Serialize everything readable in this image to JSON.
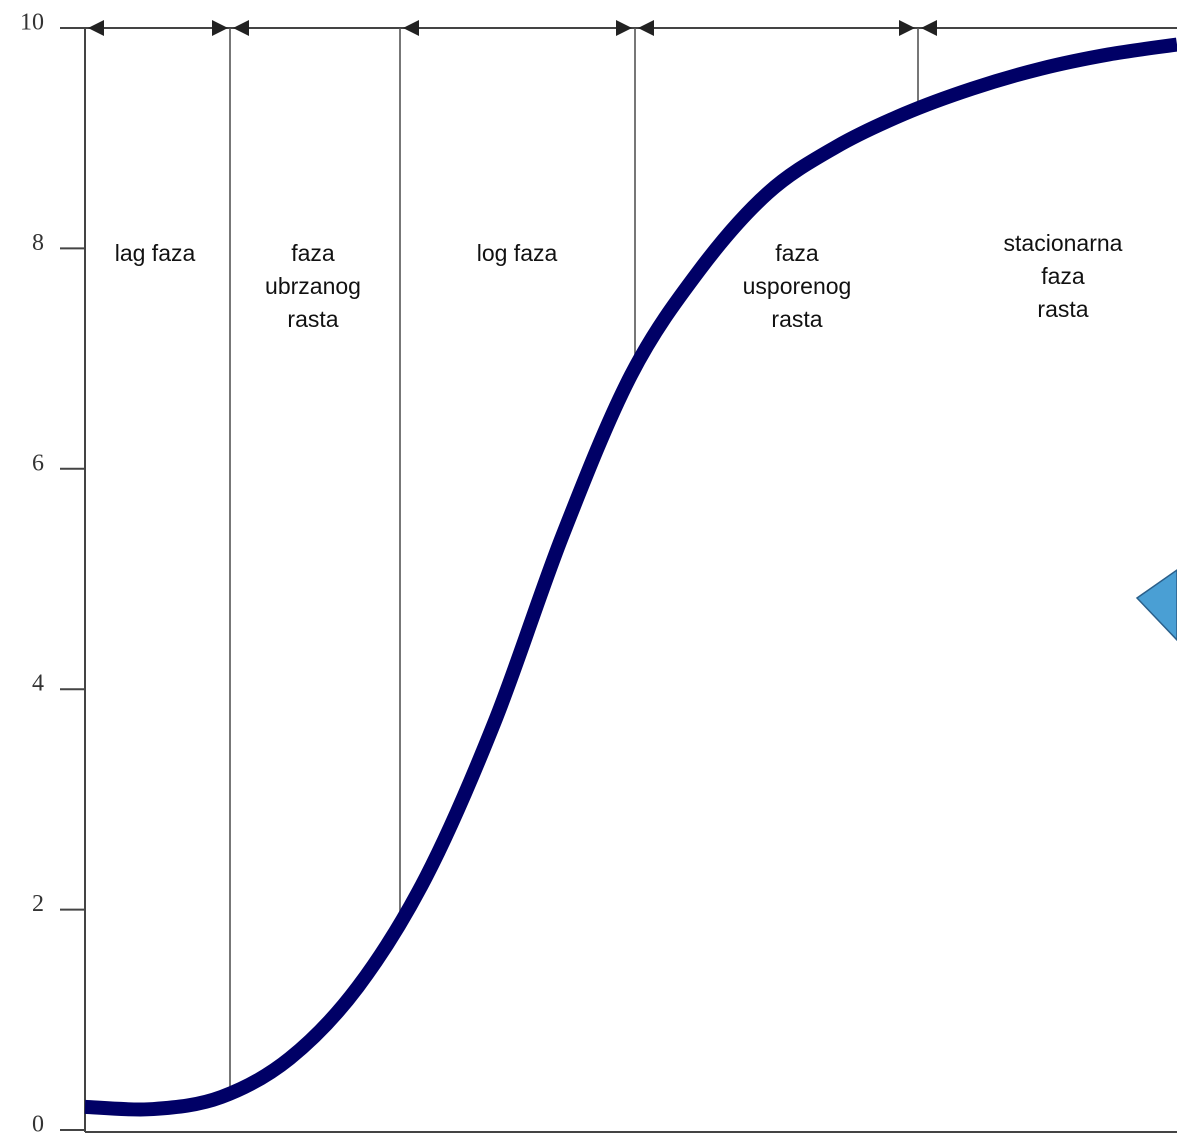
{
  "chart_data": {
    "type": "line",
    "categories": [
      null,
      null,
      null,
      null,
      null,
      null,
      null,
      null,
      null,
      null,
      null,
      null,
      null,
      null,
      null,
      null,
      null
    ],
    "values": [
      0.21,
      0.19,
      0.3,
      0.65,
      1.3,
      2.3,
      3.7,
      5.4,
      6.85,
      7.8,
      8.5,
      8.92,
      9.22,
      9.45,
      9.63,
      9.76,
      9.85
    ],
    "color": "#000066",
    "ylim": [
      0,
      10
    ],
    "yticks": [
      0,
      2,
      4,
      6,
      8,
      10
    ],
    "annotations": [
      {
        "lines": [
          "lag faza"
        ]
      },
      {
        "lines": [
          "faza",
          "ubrzanog",
          "rasta"
        ]
      },
      {
        "lines": [
          "log faza"
        ]
      },
      {
        "lines": [
          "faza",
          "usporenog",
          "rasta"
        ]
      },
      {
        "lines": [
          "stacionarna",
          "faza",
          "rasta"
        ]
      }
    ]
  }
}
